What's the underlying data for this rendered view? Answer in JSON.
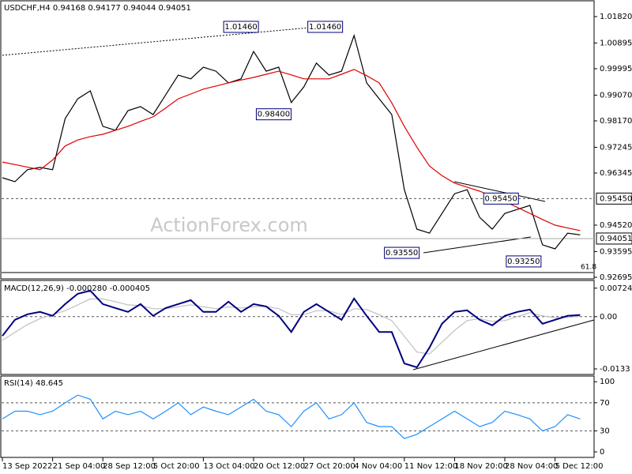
{
  "chart_data": [
    {
      "type": "line",
      "symbol": "USDCHF,H4",
      "ohlc": [
        0.94168,
        0.94177,
        0.94044,
        0.94051
      ],
      "watermark": "ActionForex.com",
      "xlim": [
        0,
        47
      ],
      "ylim": [
        0.92667,
        1.02345
      ],
      "yticks": [
        {
          "value": 1.0182,
          "label": "1.01820"
        },
        1.00895,
        0.99995,
        {
          "value": 0.9907,
          "label": "0.99070"
        },
        {
          "value": 0.9817,
          "label": "0.98170"
        },
        0.97245,
        0.96345,
        {
          "value": 0.9452,
          "label": "0.94520"
        },
        0.93595,
        0.92695
      ],
      "levels": [
        {
          "value": 0.9545,
          "label": "0.95450"
        }
      ],
      "fib_label": "61.8",
      "annotations": [
        {
          "x": 19,
          "value": 1.0146,
          "label": "1.01460"
        },
        {
          "x": 25.7,
          "value": 1.0146,
          "label": "1.01460"
        },
        {
          "x": 21.6,
          "value": 0.984,
          "label": "0.98400"
        },
        {
          "x": 39.7,
          "value": 0.9545,
          "label": "0.95450"
        },
        {
          "x": 31.8,
          "value": 0.9355,
          "label": "0.93550"
        },
        {
          "x": 41.5,
          "value": 0.9325,
          "label": "0.93250"
        }
      ],
      "series": [
        {
          "color": "#000000",
          "values": [
            0.9618,
            0.9604,
            0.9646,
            0.9654,
            0.9646,
            0.9825,
            0.9894,
            0.9922,
            0.9798,
            0.9784,
            0.9853,
            0.9867,
            0.9839,
            0.9908,
            0.9977,
            0.9964,
            1.0005,
            0.9991,
            0.995,
            0.9964,
            1.006,
            0.9991,
            1.0005,
            0.9881,
            0.9936,
            1.0019,
            0.9977,
            0.9991,
            1.0116,
            0.995,
            0.9894,
            0.9839,
            0.9576,
            0.9438,
            0.9424,
            0.9493,
            0.9562,
            0.9576,
            0.9479,
            0.9438,
            0.9493,
            0.9507,
            0.9521,
            0.9383,
            0.9369,
            0.9424,
            0.9418
          ]
        },
        {
          "color": "#e00000",
          "values": [
            0.9673,
            0.9664,
            0.9655,
            0.9646,
            0.968,
            0.9729,
            0.975,
            0.9762,
            0.977,
            0.9784,
            0.9798,
            0.9815,
            0.9831,
            0.9862,
            0.9894,
            0.9911,
            0.9928,
            0.9939,
            0.995,
            0.996,
            0.9969,
            0.998,
            0.9991,
            0.9978,
            0.9964,
            0.9964,
            0.9964,
            0.998,
            0.9997,
            0.9975,
            0.995,
            0.988,
            0.9798,
            0.9725,
            0.9659,
            0.9625,
            0.9599,
            0.9585,
            0.9571,
            0.9553,
            0.9535,
            0.9514,
            0.9493,
            0.9472,
            0.9452,
            0.9442,
            0.9433
          ]
        }
      ]
    },
    {
      "type": "line",
      "indicator": "MACD(12,26,9)",
      "readings": [
        {
          "value": -0.00028,
          "label": "-0.000280"
        },
        -0.000405
      ],
      "xlim": [
        0,
        47
      ],
      "ylim": [
        -0.0143,
        0.009
      ],
      "yticks": [
        0.00724,
        {
          "value": 0,
          "label": "0.00"
        },
        -0.0133
      ],
      "levels": [
        0
      ],
      "series": [
        {
          "color": "#c0c0c0",
          "values": [
            -0.006,
            -0.004,
            -0.002,
            -0.0005,
            0.0005,
            0.0015,
            0.003,
            0.0045,
            0.0045,
            0.0038,
            0.003,
            0.0028,
            0.002,
            0.002,
            0.0025,
            0.003,
            0.0025,
            0.002,
            0.0025,
            0.0022,
            0.0025,
            0.0026,
            0.002,
            0.0005,
            0.0005,
            0.0015,
            0.0015,
            0.0005,
            0.002,
            0.0018,
            0.0005,
            -0.001,
            -0.005,
            -0.009,
            -0.0095,
            -0.0065,
            -0.0035,
            -0.001,
            -0.0005,
            -0.0012,
            -0.001,
            0.0,
            0.001,
            0.0002,
            -0.0003,
            -0.0002,
            0.0001
          ]
        },
        {
          "color": "#000080",
          "values": [
            -0.0049,
            -0.0008,
            0.0006,
            0.0012,
            0.0002,
            0.0032,
            0.0058,
            0.0066,
            0.0032,
            0.0022,
            0.0012,
            0.0032,
            0.0002,
            0.0022,
            0.0032,
            0.0042,
            0.0012,
            0.0012,
            0.0038,
            0.0012,
            0.0032,
            0.0026,
            0.0002,
            -0.0039,
            0.0012,
            0.0032,
            0.0012,
            -0.0008,
            0.0046,
            0.0002,
            -0.0039,
            -0.0039,
            -0.0119,
            -0.0129,
            -0.0079,
            -0.0018,
            0.0012,
            0.0016,
            -0.0008,
            -0.0022,
            0.0002,
            0.0012,
            0.0018,
            -0.0018,
            -0.0008,
            0.0002,
            0.0004
          ]
        }
      ]
    },
    {
      "type": "line",
      "indicator": "RSI(14)",
      "readings": [
        48.645
      ],
      "xlim": [
        0,
        47
      ],
      "ylim": [
        -9,
        107
      ],
      "yticks": [
        100,
        70,
        30,
        0
      ],
      "levels": [
        70,
        30
      ],
      "xticks": [
        {
          "value": 0,
          "label": "13 Sep 2022"
        },
        {
          "value": 4,
          "label": "21 Sep 04:00"
        },
        {
          "value": 8,
          "label": "28 Sep 12:00"
        },
        {
          "value": 12,
          "label": "5 Oct 20:00"
        },
        {
          "value": 16,
          "label": "13 Oct 04:00"
        },
        {
          "value": 20,
          "label": "20 Oct 12:00"
        },
        {
          "value": 24,
          "label": "27 Oct 20:00"
        },
        {
          "value": 28,
          "label": "4 Nov 04:00"
        },
        {
          "value": 32,
          "label": "11 Nov 12:00"
        },
        {
          "value": 36,
          "label": "18 Nov 20:00"
        },
        {
          "value": 40,
          "label": "28 Nov 04:00"
        },
        {
          "value": 44,
          "label": "5 Dec 12:00"
        }
      ],
      "series": [
        {
          "color": "#1e90ff",
          "values": [
            47,
            58,
            58,
            53,
            58,
            70,
            81,
            75,
            47,
            58,
            53,
            58,
            47,
            58,
            70,
            53,
            64,
            58,
            53,
            64,
            75,
            58,
            53,
            36,
            58,
            70,
            47,
            53,
            70,
            42,
            36,
            36,
            19,
            25,
            36,
            47,
            58,
            47,
            36,
            42,
            58,
            53,
            47,
            30,
            36,
            53,
            47
          ]
        }
      ]
    }
  ]
}
